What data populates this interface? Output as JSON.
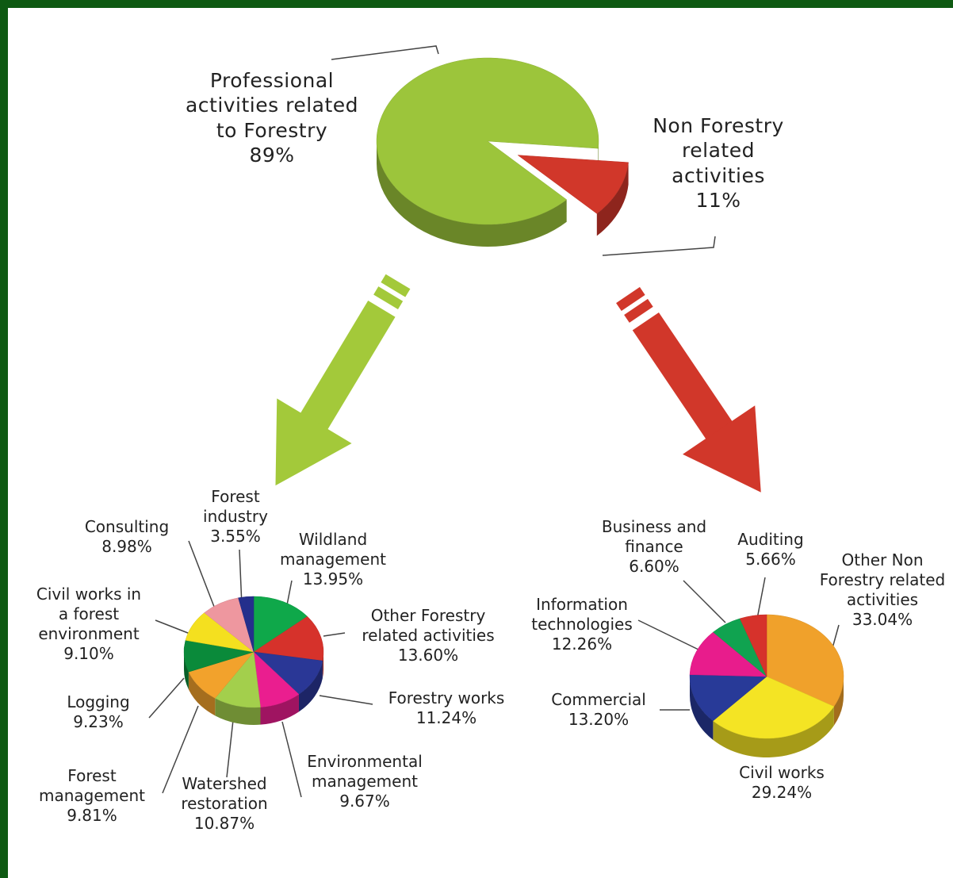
{
  "chart_data": [
    {
      "type": "pie",
      "categories": [
        "Professional activities related to Forestry",
        "Non Forestry related activities"
      ],
      "values": [
        89,
        11
      ],
      "value_labels": [
        "89%",
        "11%"
      ],
      "colors": [
        "#9cc53b",
        "#d1372a"
      ]
    },
    {
      "type": "pie",
      "categories": [
        "Wildland management",
        "Other Forestry related activities",
        "Forestry works",
        "Environmental management",
        "Watershed restoration",
        "Forest management",
        "Logging",
        "Civil works in a forest environment",
        "Consulting",
        "Forest industry"
      ],
      "values": [
        13.95,
        13.6,
        11.24,
        9.67,
        10.87,
        9.81,
        9.23,
        9.1,
        8.98,
        3.55
      ],
      "value_labels": [
        "13.95%",
        "13.60%",
        "11.24%",
        "9.67%",
        "10.87%",
        "9.81%",
        "9.23%",
        "9.10%",
        "8.98%",
        "3.55%"
      ],
      "colors": [
        "#0fa84a",
        "#d6322b",
        "#2a3796",
        "#ea1e8f",
        "#a3cf4c",
        "#f2a22c",
        "#0a8a3a",
        "#f4e01f",
        "#ee979f",
        "#242f8c"
      ]
    },
    {
      "type": "pie",
      "categories": [
        "Other Non Forestry related activities",
        "Civil works",
        "Commercial",
        "Information technologies",
        "Business and finance",
        "Auditing"
      ],
      "values": [
        33.04,
        29.24,
        13.2,
        12.26,
        6.6,
        5.66
      ],
      "value_labels": [
        "33.04%",
        "29.24%",
        "13.20%",
        "12.26%",
        "6.60%",
        "5.66%"
      ],
      "colors": [
        "#f0a12b",
        "#f4e424",
        "#283a98",
        "#e81c8c",
        "#10a350",
        "#d6322b"
      ]
    }
  ]
}
